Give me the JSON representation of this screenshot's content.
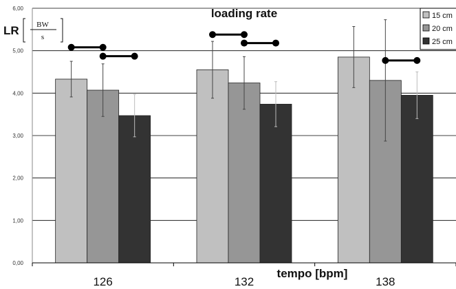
{
  "chart_data": {
    "type": "bar",
    "title": "loading rate",
    "ylabel": "LR",
    "yunit": {
      "numerator": "BW",
      "denominator": "s"
    },
    "xlabel": "tempo [bpm]",
    "categories": [
      "126",
      "132",
      "138"
    ],
    "ylim": [
      0,
      6
    ],
    "yticks": [
      "0,00",
      "1,00",
      "2,00",
      "3,00",
      "4,00",
      "5,00",
      "6,00"
    ],
    "grid": true,
    "legend_position": "top-right",
    "series": [
      {
        "name": "15 cm",
        "color": "#c0c0c0",
        "values": [
          4.33,
          4.55,
          4.85
        ],
        "errors": [
          0.42,
          0.67,
          0.72
        ],
        "error_color": "#444444"
      },
      {
        "name": "20 cm",
        "color": "#969696",
        "values": [
          4.07,
          4.24,
          4.3
        ],
        "errors": [
          0.62,
          0.62,
          1.43
        ],
        "error_color": "#444444"
      },
      {
        "name": "25 cm",
        "color": "#333333",
        "values": [
          3.47,
          3.74,
          3.95
        ],
        "errors": [
          0.5,
          0.53,
          0.55
        ],
        "error_color": "#bbbbbb"
      }
    ],
    "significance_bars": [
      {
        "category": "126",
        "y": 5.08,
        "from_series": 0,
        "to_series": 1
      },
      {
        "category": "126",
        "y": 4.87,
        "from_series": 1,
        "to_series": 2
      },
      {
        "category": "132",
        "y": 5.38,
        "from_series": 0,
        "to_series": 1
      },
      {
        "category": "132",
        "y": 5.18,
        "from_series": 1,
        "to_series": 2
      },
      {
        "category": "138",
        "y": 4.77,
        "from_series": 1,
        "to_series": 2
      }
    ]
  }
}
